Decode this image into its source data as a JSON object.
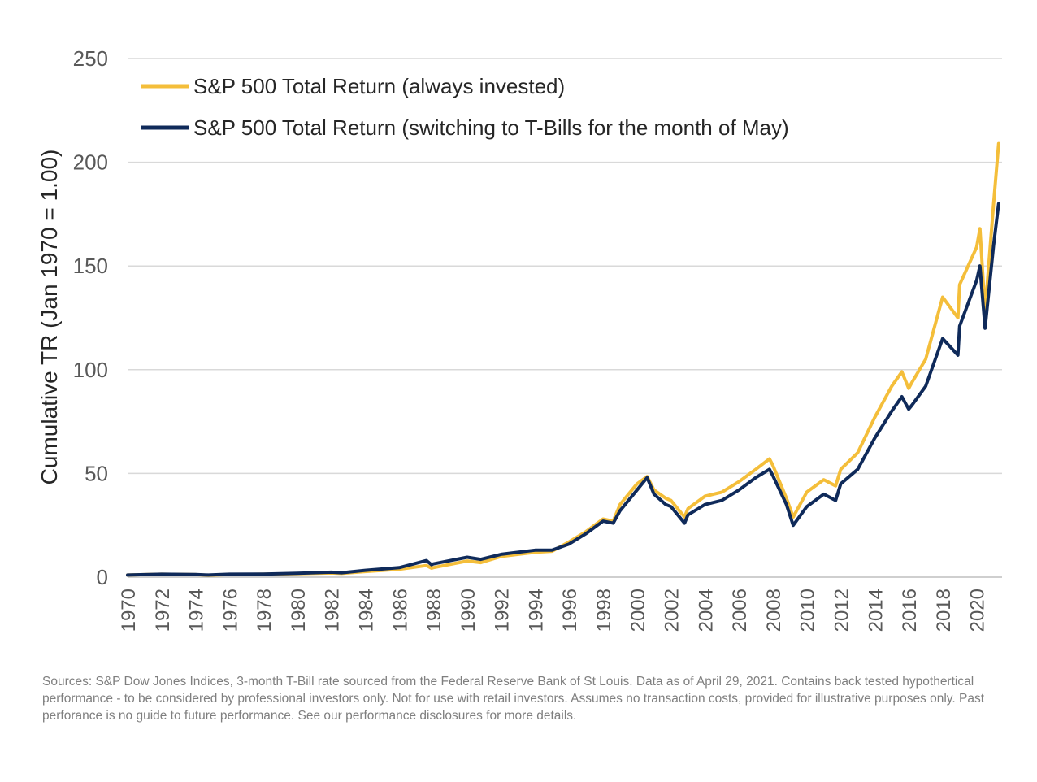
{
  "chart_data": {
    "type": "line",
    "ylabel": "Cumulative TR (Jan 1970  = 1.00)",
    "xlabel": "",
    "ylim": [
      0,
      250
    ],
    "yticks": [
      "0",
      "50",
      "100",
      "150",
      "200",
      "250"
    ],
    "xlim": [
      1970,
      2021.3
    ],
    "xticks": [
      "1970",
      "1972",
      "1974",
      "1976",
      "1978",
      "1980",
      "1982",
      "1984",
      "1986",
      "1988",
      "1990",
      "1992",
      "1994",
      "1996",
      "1998",
      "2000",
      "2002",
      "2004",
      "2006",
      "2008",
      "2010",
      "2012",
      "2014",
      "2016",
      "2018",
      "2020"
    ],
    "grid": "horizontal",
    "legend_position": "top-left",
    "series": [
      {
        "name": "S&P 500 Total Return (always invested)",
        "color": "#F4BE3A",
        "x": [
          1970,
          1972,
          1974,
          1974.75,
          1976,
          1978,
          1980,
          1982,
          1982.6,
          1984,
          1986,
          1987.6,
          1987.9,
          1988,
          1990,
          1990.8,
          1992,
          1994,
          1995,
          1996,
          1997,
          1998,
          1998.6,
          1999,
          2000,
          2000.6,
          2001,
          2001.7,
          2002,
          2002.8,
          2003,
          2004,
          2005,
          2006,
          2007,
          2007.8,
          2008,
          2008.8,
          2009.2,
          2010,
          2011,
          2011.7,
          2012,
          2013,
          2014,
          2015,
          2015.6,
          2016,
          2016.2,
          2017,
          2018,
          2018.9,
          2019,
          2020,
          2020.2,
          2020.5,
          2021,
          2021.3
        ],
        "values": [
          1.0,
          1.4,
          1.2,
          0.9,
          1.3,
          1.4,
          1.7,
          2.0,
          1.8,
          2.7,
          3.8,
          5.6,
          4.3,
          4.6,
          7.8,
          7.0,
          10.0,
          12.0,
          12.5,
          17.0,
          22.0,
          28.0,
          27.0,
          35.0,
          45.0,
          48.5,
          42.0,
          38.0,
          37.0,
          29.0,
          33.0,
          39.0,
          41.0,
          46.0,
          52.0,
          57.0,
          54.0,
          38.0,
          29.0,
          41.0,
          47.0,
          44.0,
          52.0,
          60.0,
          77.0,
          92.0,
          99.0,
          91.0,
          94.0,
          105.0,
          135.0,
          125.0,
          141.0,
          159.0,
          168.0,
          128.0,
          180.0,
          209.0
        ]
      },
      {
        "name": "S&P 500 Total Return (switching to T-Bills for the month of May)",
        "color": "#0F2A5A",
        "x": [
          1970,
          1972,
          1974,
          1974.75,
          1976,
          1978,
          1980,
          1982,
          1982.6,
          1984,
          1986,
          1987.6,
          1987.9,
          1988,
          1990,
          1990.8,
          1992,
          1994,
          1995,
          1996,
          1997,
          1998,
          1998.6,
          1999,
          2000,
          2000.6,
          2001,
          2001.7,
          2002,
          2002.8,
          2003,
          2004,
          2005,
          2006,
          2007,
          2007.8,
          2008,
          2008.8,
          2009.2,
          2010,
          2011,
          2011.7,
          2012,
          2013,
          2014,
          2015,
          2015.6,
          2016,
          2016.2,
          2017,
          2018,
          2018.9,
          2019,
          2020,
          2020.2,
          2020.5,
          2021,
          2021.3
        ],
        "values": [
          1.0,
          1.4,
          1.3,
          1.0,
          1.4,
          1.5,
          1.9,
          2.4,
          2.1,
          3.3,
          4.6,
          8.0,
          6.0,
          6.4,
          9.6,
          8.6,
          11.0,
          13.0,
          13.0,
          16.0,
          21.0,
          27.0,
          26.0,
          32.0,
          42.0,
          48.0,
          40.0,
          35.0,
          34.0,
          26.0,
          30.0,
          35.0,
          37.0,
          42.0,
          48.0,
          52.0,
          49.0,
          35.0,
          25.0,
          34.0,
          40.0,
          37.0,
          45.0,
          52.0,
          67.0,
          80.0,
          87.0,
          81.0,
          83.0,
          92.0,
          115.0,
          107.0,
          121.0,
          143.0,
          150.0,
          120.0,
          160.0,
          180.0
        ]
      }
    ]
  },
  "legend": [
    {
      "label": "S&P 500 Total Return (always invested)",
      "color": "#F4BE3A"
    },
    {
      "label": "S&P 500 Total Return (switching to T-Bills for the month of May)",
      "color": "#0F2A5A"
    }
  ],
  "footnote": "Sources: S&P Dow Jones Indices, 3-month T-Bill rate sourced from the Federal Reserve Bank of St Louis.  Data as of April 29, 2021.  Contains back tested hypothertical performance - to be considered by professional investors only.  Not for use with retail investors.  Assumes no transaction costs, provided for illustrative purposes only.  Past perforance is no guide to future performance.  See our performance disclosures for more details."
}
